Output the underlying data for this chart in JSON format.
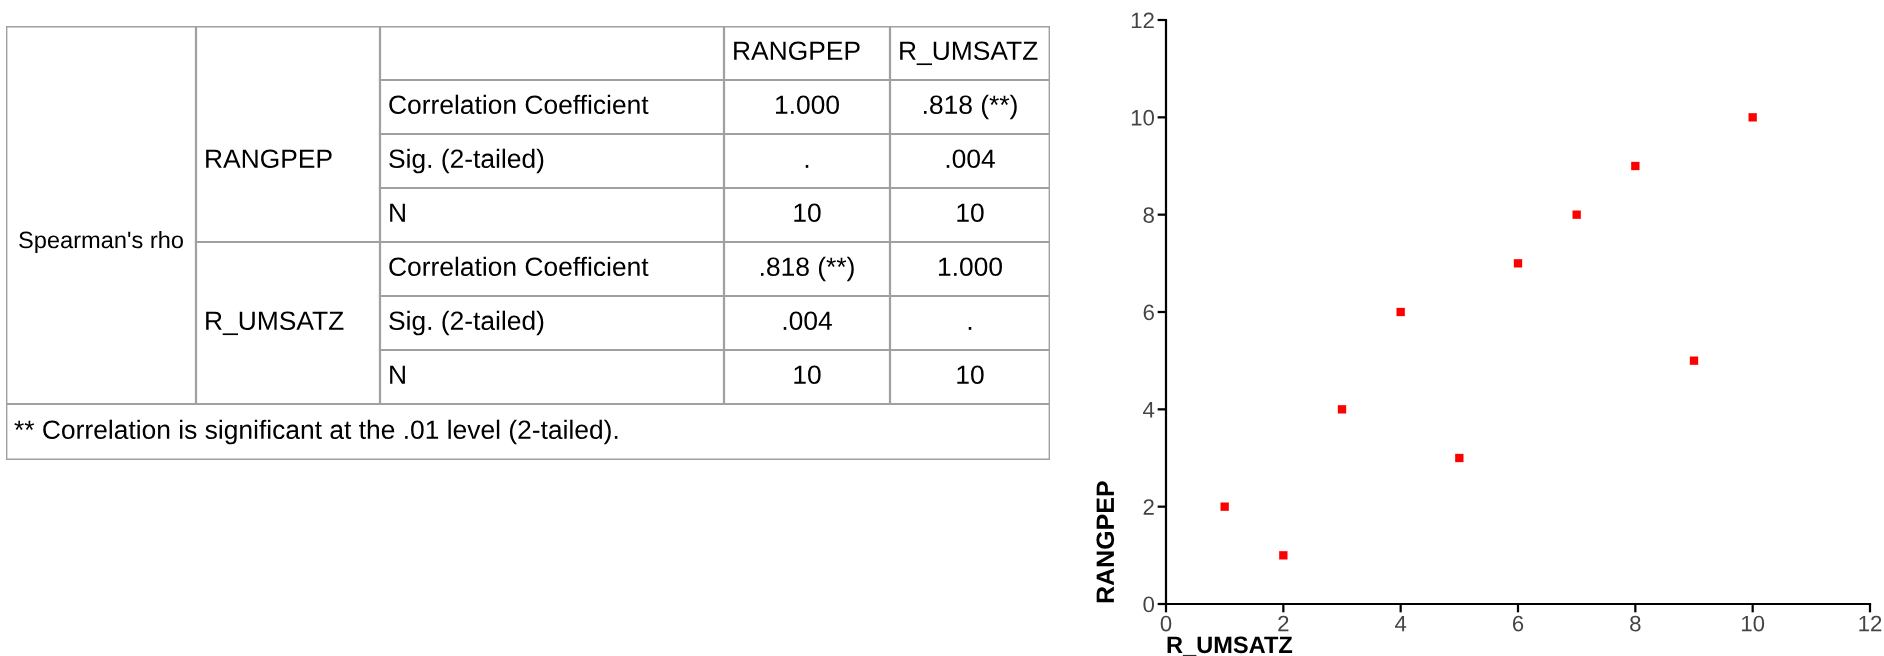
{
  "chart_data": [
    {
      "type": "other",
      "categories": [
        "RANGPEP",
        "R_UMSATZ"
      ],
      "y_categories": [
        "Correlation Coefficient",
        "Sig. (2-tailed)",
        "N",
        "Correlation Coefficient",
        "Sig. (2-tailed)",
        "N"
      ],
      "y2_categories": [
        "RANGPEP",
        null,
        null,
        "R_UMSATZ",
        null,
        null
      ],
      "cell_labels": [
        [
          "1.000",
          ".818 (**)"
        ],
        [
          ".",
          ".004"
        ],
        [
          "10",
          "10"
        ],
        [
          ".818 (**)",
          "1.000"
        ],
        [
          ".004",
          "."
        ],
        [
          "10",
          "10"
        ]
      ],
      "annotations": [
        "Spearman's rho",
        "** Correlation is significant at the .01 level (2-tailed)."
      ]
    },
    {
      "type": "scatter",
      "xlabel": "R_UMSATZ",
      "ylabel": "RANGPEP",
      "x": [
        1,
        2,
        3,
        4,
        5,
        6,
        7,
        8,
        9,
        10
      ],
      "values": [
        2,
        1,
        4,
        6,
        3,
        7,
        8,
        9,
        5,
        10
      ],
      "color": "#ff0000",
      "marker": "square",
      "xlim": [
        0,
        12
      ],
      "ylim": [
        0,
        12
      ],
      "xticks": [
        0,
        2,
        4,
        6,
        8,
        10,
        12
      ],
      "yticks": [
        0,
        2,
        4,
        6,
        8,
        10,
        12
      ],
      "grid": false
    }
  ]
}
